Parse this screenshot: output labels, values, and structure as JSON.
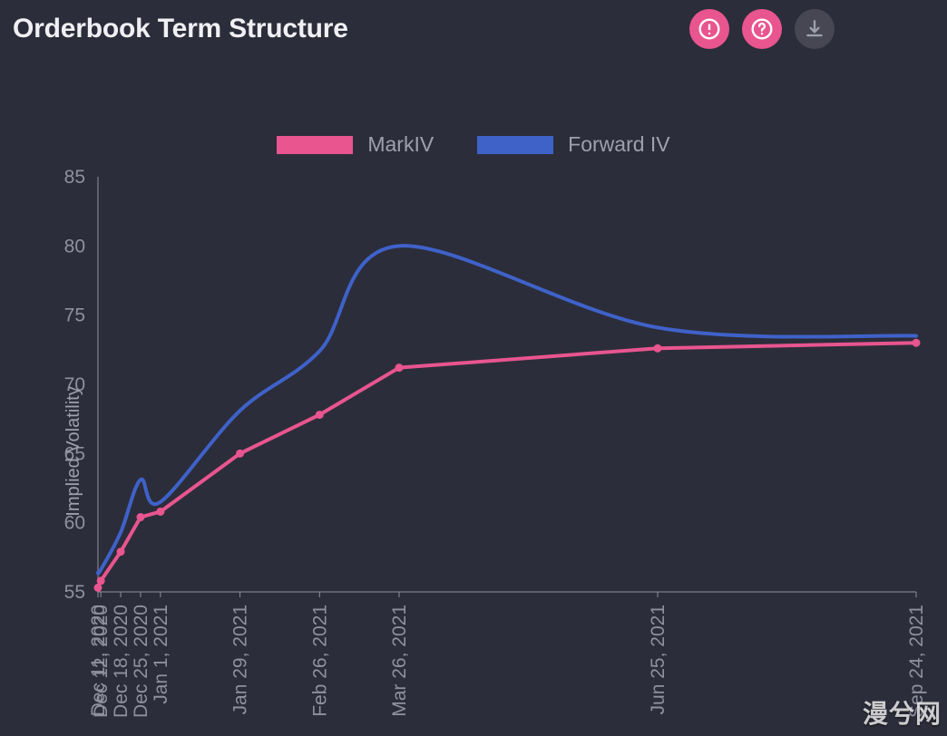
{
  "header": {
    "title": "Orderbook Term Structure",
    "icons": {
      "warning": "warning-icon",
      "help": "help-icon",
      "download": "download-icon"
    }
  },
  "legend": {
    "items": [
      {
        "label": "MarkIV",
        "color": "#e8558f"
      },
      {
        "label": "Forward IV",
        "color": "#3f62c9"
      }
    ]
  },
  "chart": {
    "type": "line",
    "background_color": "#2c2d3a",
    "axis_color": "#8f919f",
    "label_color": "#9ea0ad",
    "ylabel": "Implied Volatility",
    "label_fontsize": 20,
    "ylim": [
      55,
      85
    ],
    "ytick_step": 5,
    "line_width": 4,
    "marker_radius": 4.5,
    "x_categories": [
      "Dec 11, 2020",
      "Dec 12, 2020",
      "Dec 18, 2020",
      "Dec 25, 2020",
      "Jan 1, 2021",
      "Jan 29, 2021",
      "Feb 26, 2021",
      "Mar 26, 2021",
      "Jun 25, 2021",
      "Sep 24, 2021"
    ],
    "x_positions": [
      0,
      1,
      8,
      15,
      22,
      50,
      78,
      106,
      197,
      288
    ],
    "series": [
      {
        "name": "MarkIV",
        "color": "#e8558f",
        "markers": true,
        "values": [
          55.3,
          55.8,
          57.9,
          60.4,
          60.8,
          65.0,
          67.8,
          71.2,
          72.6,
          73.0
        ]
      },
      {
        "name": "Forward IV",
        "color": "#3f62c9",
        "markers": false,
        "spline": true,
        "values": [
          56.4,
          56.6,
          59.3,
          63.1,
          61.5,
          68.1,
          72.4,
          80.0,
          74.1,
          73.5
        ]
      }
    ]
  },
  "watermark": "漫兮网"
}
